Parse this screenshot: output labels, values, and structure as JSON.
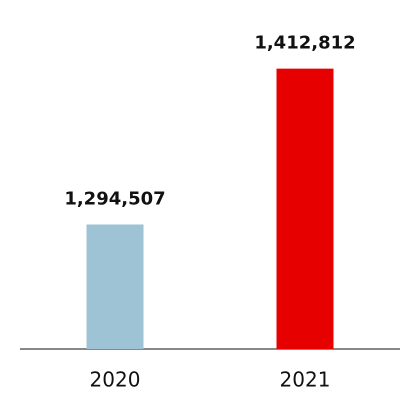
{
  "chart_data": {
    "type": "bar",
    "categories": [
      "2020",
      "2021"
    ],
    "values": [
      1294507,
      1412812
    ],
    "value_labels": [
      "1,294,507",
      "1,412,812"
    ],
    "colors": [
      "#9ec3d5",
      "#e60000"
    ],
    "ylim": [
      1200000,
      1430000
    ]
  }
}
